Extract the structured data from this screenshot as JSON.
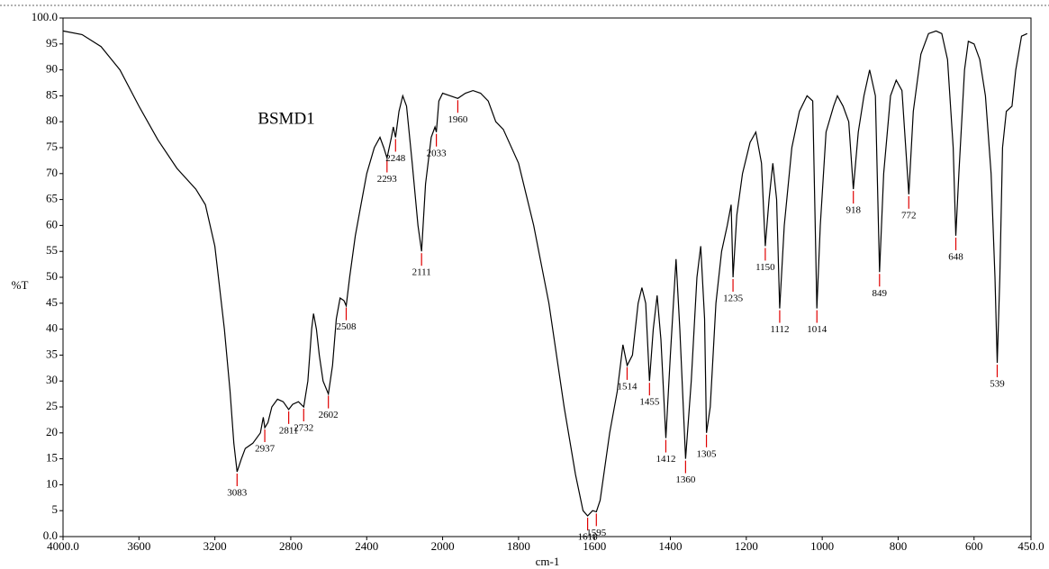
{
  "chart_data": {
    "type": "line",
    "title": "BSMD1",
    "x_label": "cm-1",
    "y_label": "%T",
    "xlim": [
      4000,
      450
    ],
    "x_scale_break": 2000,
    "x_scale_factor_below_break": 2,
    "xticks": [
      {
        "value": 4000,
        "label": "4000.0"
      },
      3600,
      3200,
      2800,
      2400,
      2000,
      1800,
      1600,
      1400,
      1200,
      1000,
      800,
      600,
      {
        "value": 450,
        "label": "450.0"
      }
    ],
    "ylim": [
      0,
      100
    ],
    "yticks": [
      {
        "value": 0,
        "label": "0.0"
      },
      5,
      10,
      15,
      20,
      25,
      30,
      35,
      40,
      45,
      50,
      55,
      60,
      65,
      70,
      75,
      80,
      85,
      90,
      95,
      {
        "value": 100,
        "label": "100.0"
      }
    ],
    "color": "#000000",
    "peak_color": "#e00000",
    "x": [
      4000,
      3900,
      3800,
      3700,
      3600,
      3500,
      3400,
      3300,
      3250,
      3200,
      3150,
      3120,
      3100,
      3083,
      3060,
      3040,
      3000,
      2960,
      2945,
      2937,
      2920,
      2900,
      2870,
      2840,
      2811,
      2790,
      2760,
      2732,
      2710,
      2690,
      2680,
      2665,
      2650,
      2630,
      2602,
      2580,
      2560,
      2540,
      2520,
      2508,
      2490,
      2460,
      2430,
      2400,
      2360,
      2330,
      2310,
      2293,
      2270,
      2260,
      2248,
      2230,
      2210,
      2190,
      2160,
      2130,
      2111,
      2090,
      2060,
      2040,
      2033,
      2020,
      2000,
      1980,
      1960,
      1940,
      1920,
      1900,
      1880,
      1860,
      1840,
      1800,
      1760,
      1720,
      1680,
      1650,
      1630,
      1618,
      1605,
      1595,
      1585,
      1560,
      1540,
      1525,
      1514,
      1500,
      1485,
      1475,
      1465,
      1455,
      1445,
      1435,
      1425,
      1412,
      1400,
      1385,
      1375,
      1360,
      1345,
      1330,
      1320,
      1310,
      1305,
      1295,
      1280,
      1265,
      1250,
      1240,
      1235,
      1225,
      1210,
      1190,
      1175,
      1160,
      1150,
      1140,
      1130,
      1120,
      1112,
      1100,
      1080,
      1060,
      1040,
      1025,
      1014,
      1005,
      990,
      970,
      960,
      945,
      930,
      918,
      905,
      890,
      875,
      860,
      849,
      838,
      820,
      805,
      790,
      772,
      760,
      740,
      720,
      700,
      685,
      670,
      655,
      648,
      640,
      625,
      615,
      600,
      585,
      570,
      555,
      545,
      539,
      532,
      525,
      515,
      500,
      490,
      475,
      460
    ],
    "values": [
      97.5,
      96.8,
      94.5,
      90,
      83,
      76.5,
      71,
      67,
      64,
      56,
      40,
      28,
      18,
      12.5,
      15,
      17,
      18,
      20,
      23,
      21,
      22,
      25,
      26.5,
      26,
      24.5,
      25.5,
      26,
      25,
      30,
      40,
      43,
      40,
      35,
      30,
      27.5,
      33,
      42,
      46,
      45.5,
      44.5,
      50,
      58,
      64,
      70,
      75,
      77,
      75,
      73,
      77,
      79,
      77,
      82,
      85,
      83,
      72,
      60,
      55,
      68,
      77,
      79,
      78,
      84,
      85.5,
      85,
      84.5,
      85.5,
      86,
      85.5,
      84,
      80,
      78.5,
      72,
      60,
      45,
      25,
      12,
      5,
      4,
      5,
      4.8,
      7,
      20,
      28,
      37,
      33,
      35,
      45,
      48,
      45,
      30,
      40,
      46.5,
      38,
      19,
      35,
      53.5,
      40,
      15,
      30,
      50,
      56,
      42,
      20,
      25,
      45,
      55,
      60,
      64,
      50,
      62,
      70,
      76,
      78,
      72,
      56,
      65,
      72,
      65,
      44,
      60,
      75,
      82,
      85,
      84,
      44,
      60,
      78,
      83,
      85,
      83,
      80,
      67,
      78,
      85,
      90,
      85,
      51,
      70,
      85,
      88,
      86,
      66,
      82,
      93,
      97,
      97.5,
      97,
      92,
      75,
      58,
      70,
      90,
      95.5,
      95,
      92,
      85,
      70,
      50,
      33.5,
      50,
      75,
      82,
      83,
      90,
      96.5,
      97
    ],
    "peaks": [
      3083,
      2937,
      2811,
      2732,
      2602,
      2508,
      2293,
      2248,
      2111,
      2033,
      1960,
      1618,
      1595,
      1514,
      1455,
      1412,
      1360,
      1305,
      1235,
      1150,
      1112,
      1014,
      918,
      849,
      772,
      648,
      539
    ],
    "peak_values": [
      12.5,
      21,
      24.5,
      25,
      27.5,
      44.5,
      73,
      77,
      55,
      78,
      84.5,
      4,
      4.8,
      33,
      30,
      19,
      15,
      20,
      50,
      56,
      44,
      44,
      67,
      51,
      66,
      58,
      33.5
    ]
  }
}
